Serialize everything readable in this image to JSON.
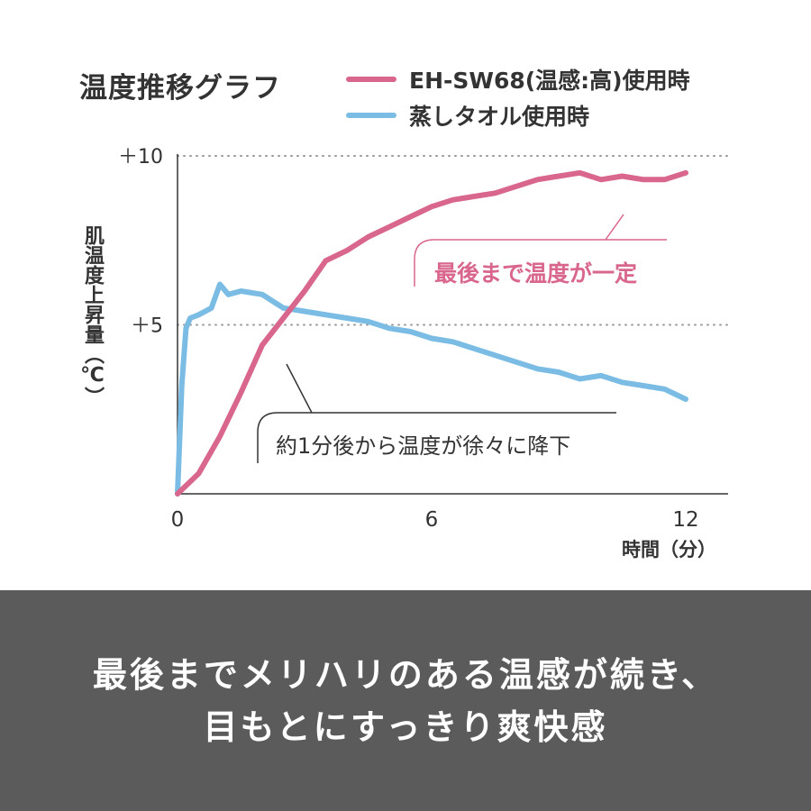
{
  "colors": {
    "pink": "#d8668d",
    "blue": "#7bbce4",
    "text": "#333333",
    "axis": "#333333",
    "grid": "#999999",
    "banner_bg": "#5b5b5b"
  },
  "chart_data": {
    "type": "line",
    "title": "温度推移グラフ",
    "xlabel": "時間（分）",
    "ylabel": "肌温度上昇量（℃）",
    "xlim": [
      0,
      13
    ],
    "ylim": [
      0,
      10
    ],
    "x_ticks": [
      0,
      6,
      12
    ],
    "x_tick_labels": [
      "0",
      "6",
      "12"
    ],
    "y_ticks": [
      5,
      10
    ],
    "y_tick_labels": [
      "＋5",
      "＋10"
    ],
    "grid": "dotted horizontal lines at +5 and +10",
    "legend_position": "top-right",
    "series": [
      {
        "name": "EH-SW68(温感:高)使用時",
        "color": "#d8668d",
        "x": [
          0,
          0.5,
          1,
          1.5,
          2,
          2.5,
          3,
          3.5,
          4,
          4.5,
          5,
          5.5,
          6,
          6.5,
          7,
          7.5,
          8,
          8.5,
          9,
          9.5,
          10,
          10.5,
          11,
          11.5,
          12
        ],
        "y": [
          0,
          0.6,
          1.7,
          3.0,
          4.4,
          5.2,
          6.0,
          6.9,
          7.2,
          7.6,
          7.9,
          8.2,
          8.5,
          8.7,
          8.8,
          8.9,
          9.1,
          9.3,
          9.4,
          9.5,
          9.3,
          9.4,
          9.3,
          9.3,
          9.5
        ]
      },
      {
        "name": "蒸しタオル使用時",
        "color": "#7bbce4",
        "x": [
          0,
          0.1,
          0.2,
          0.3,
          0.5,
          0.8,
          1.0,
          1.2,
          1.5,
          2.0,
          2.5,
          3.0,
          3.5,
          4.0,
          4.5,
          5.0,
          5.5,
          6.0,
          6.5,
          7.0,
          7.5,
          8.0,
          8.5,
          9.0,
          9.5,
          10.0,
          10.5,
          11.0,
          11.5,
          12.0
        ],
        "y": [
          0,
          3.2,
          4.9,
          5.2,
          5.3,
          5.5,
          6.2,
          5.9,
          6.0,
          5.9,
          5.5,
          5.4,
          5.3,
          5.2,
          5.1,
          4.9,
          4.8,
          4.6,
          4.5,
          4.3,
          4.1,
          3.9,
          3.7,
          3.6,
          3.4,
          3.5,
          3.3,
          3.2,
          3.1,
          2.8
        ]
      }
    ],
    "annotations": [
      {
        "text": "最後まで温度が一定",
        "color": "#d8668d"
      },
      {
        "text": "約1分後から温度が徐々に降下",
        "color": "#333333"
      }
    ]
  },
  "banner": {
    "line1": "最後までメリハリのある温感が続き、",
    "line2": "目もとにすっきり爽快感"
  }
}
